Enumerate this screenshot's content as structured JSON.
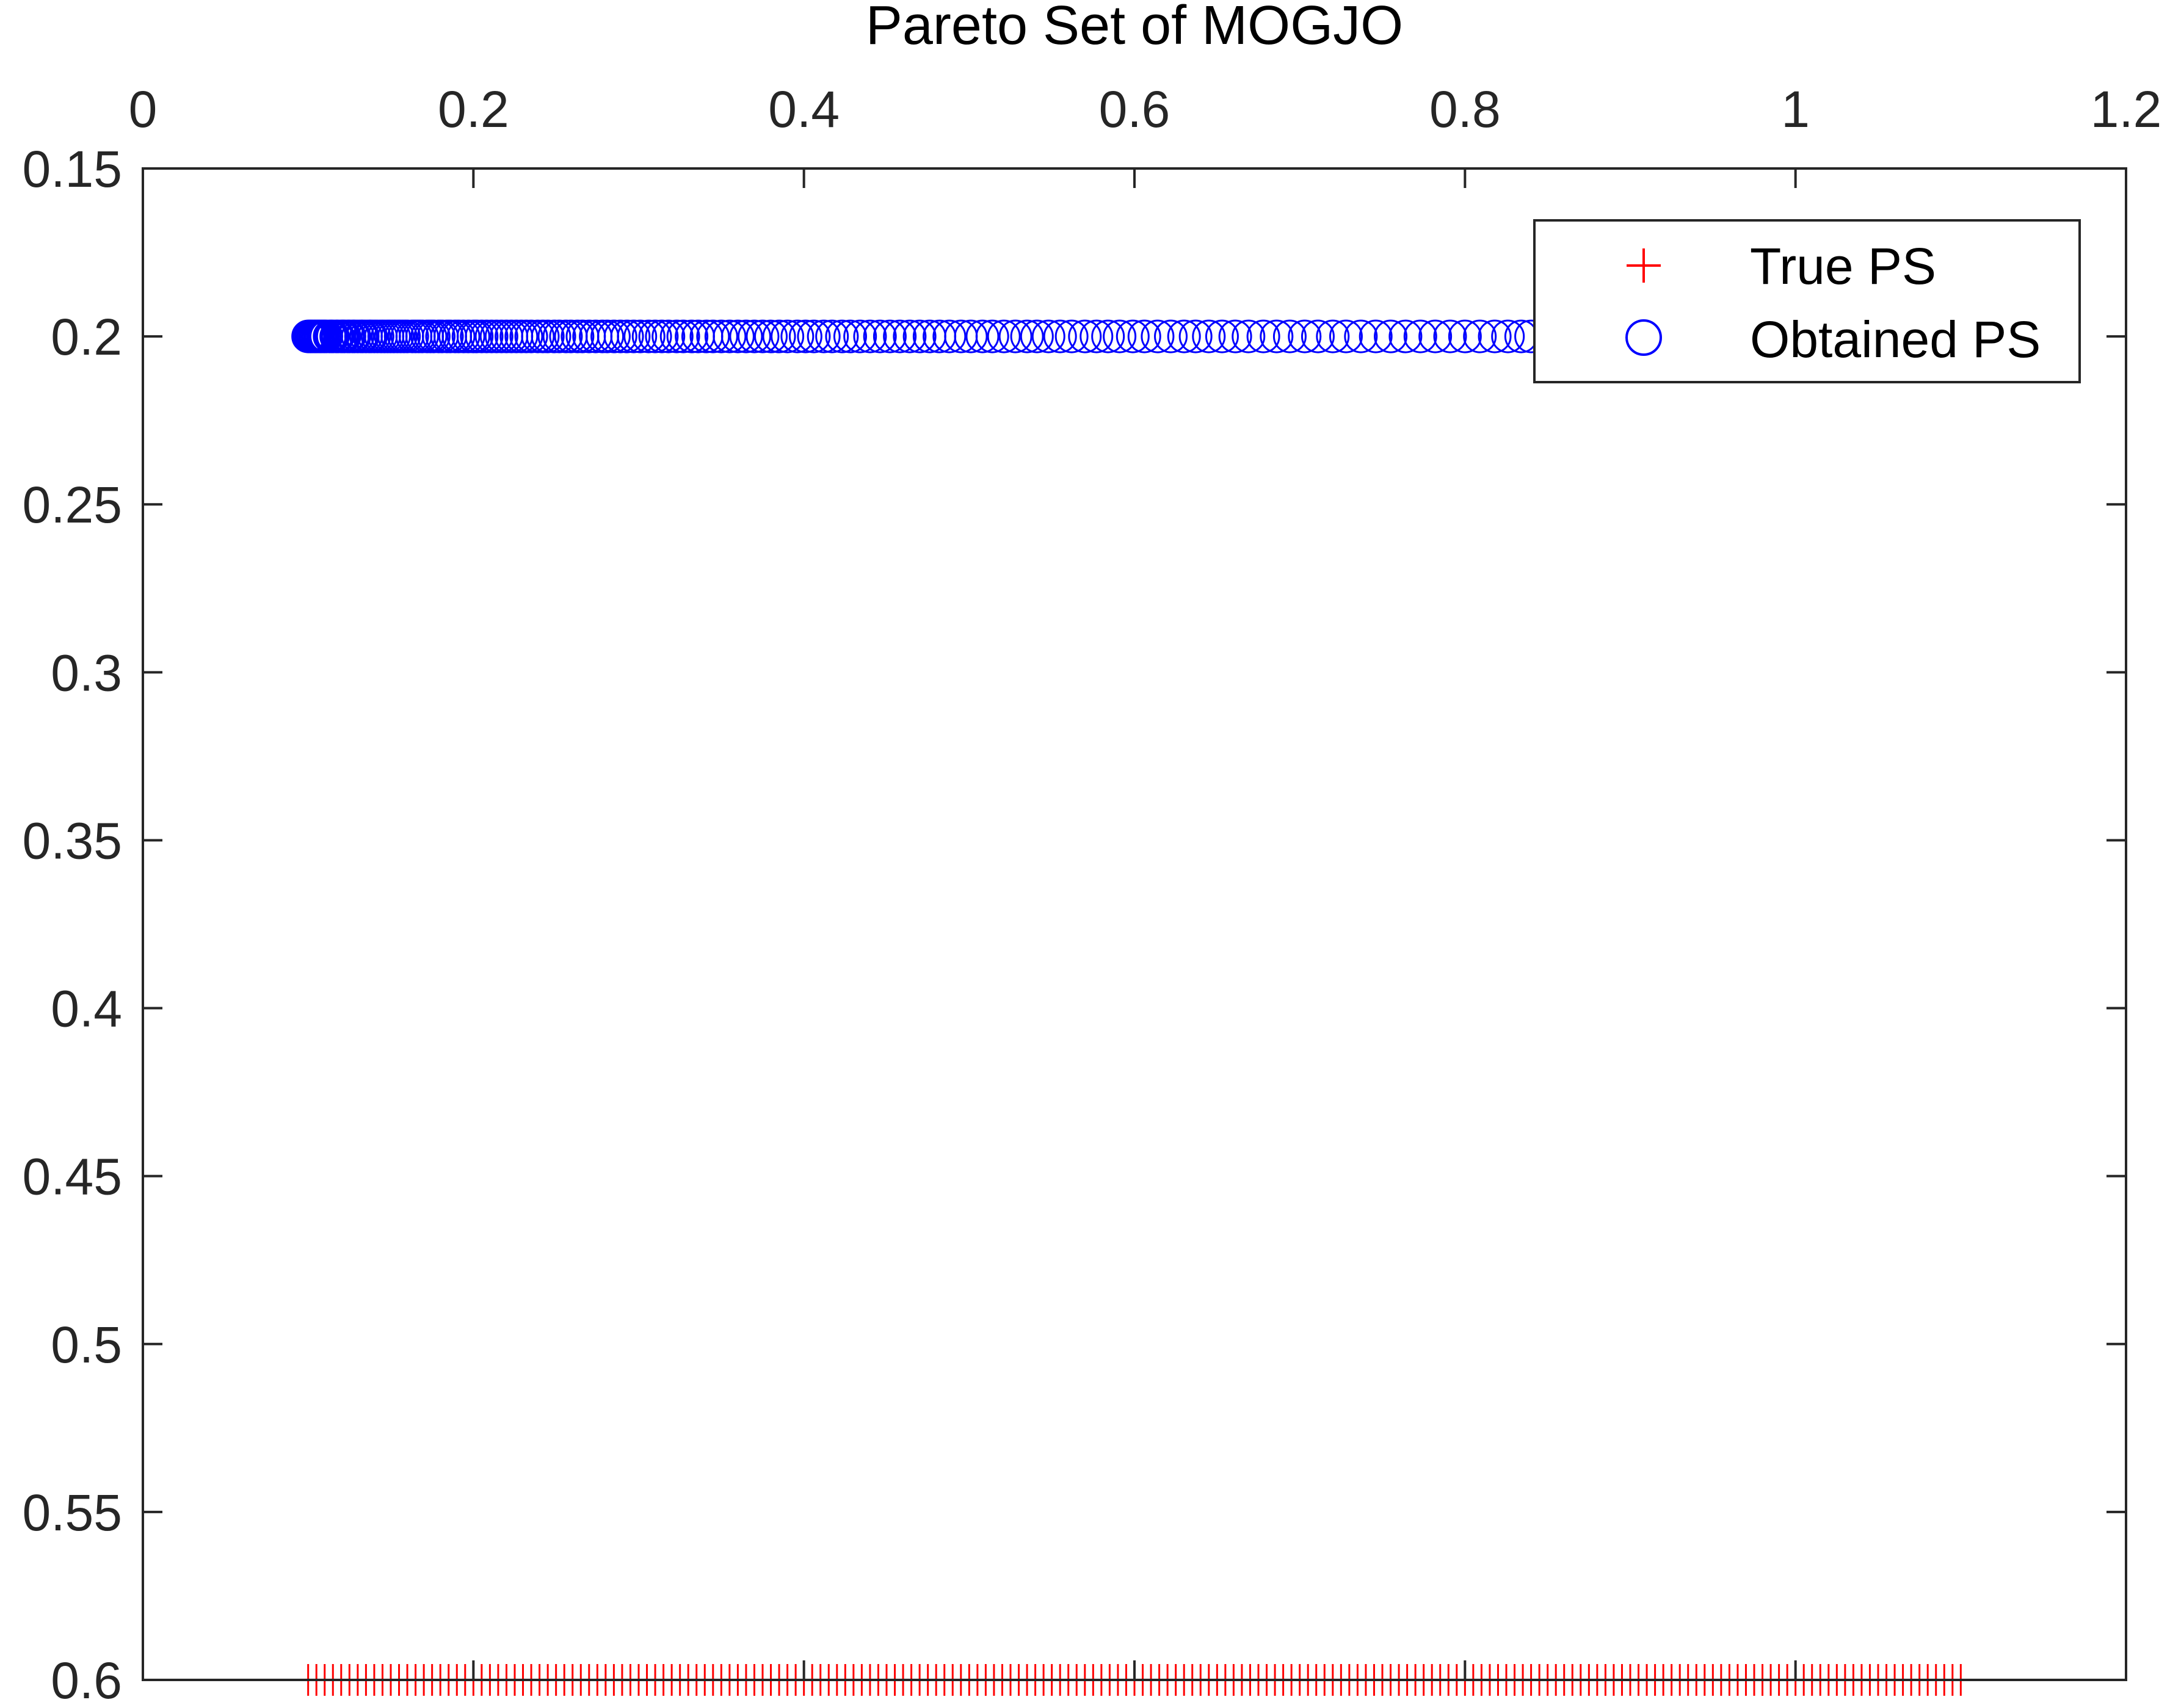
{
  "chart_data": {
    "type": "scatter",
    "title": "Pareto Set of MOGJO",
    "xlabel": "",
    "ylabel": "",
    "x_axis_location": "top",
    "y_axis_direction": "reversed",
    "xlim": [
      0,
      1.2
    ],
    "ylim": [
      0.15,
      0.6
    ],
    "xticks": [
      0,
      0.2,
      0.4,
      0.6,
      0.8,
      1,
      1.2
    ],
    "xtick_labels": [
      "0",
      "0.2",
      "0.4",
      "0.6",
      "0.8",
      "1",
      "1.2"
    ],
    "yticks": [
      0.15,
      0.2,
      0.25,
      0.3,
      0.35,
      0.4,
      0.45,
      0.5,
      0.55,
      0.6
    ],
    "ytick_labels": [
      "0.15",
      "0.2",
      "0.25",
      "0.3",
      "0.35",
      "0.4",
      "0.45",
      "0.5",
      "0.55",
      "0.6"
    ],
    "grid": false,
    "legend_position": "top-right",
    "series": [
      {
        "name": "True PS",
        "marker": "plus",
        "color": "#ff0000",
        "y_constant": 0.6,
        "x": [
          0.1,
          0.105,
          0.11,
          0.115,
          0.12,
          0.125,
          0.13,
          0.135,
          0.14,
          0.145,
          0.15,
          0.155,
          0.16,
          0.165,
          0.17,
          0.175,
          0.18,
          0.185,
          0.19,
          0.195,
          0.2,
          0.205,
          0.21,
          0.215,
          0.22,
          0.225,
          0.23,
          0.235,
          0.24,
          0.245,
          0.25,
          0.255,
          0.26,
          0.265,
          0.27,
          0.275,
          0.28,
          0.285,
          0.29,
          0.295,
          0.3,
          0.305,
          0.31,
          0.315,
          0.32,
          0.325,
          0.33,
          0.335,
          0.34,
          0.345,
          0.35,
          0.355,
          0.36,
          0.365,
          0.37,
          0.375,
          0.38,
          0.385,
          0.39,
          0.395,
          0.4,
          0.405,
          0.41,
          0.415,
          0.42,
          0.425,
          0.43,
          0.435,
          0.44,
          0.445,
          0.45,
          0.455,
          0.46,
          0.465,
          0.47,
          0.475,
          0.48,
          0.485,
          0.49,
          0.495,
          0.5,
          0.505,
          0.51,
          0.515,
          0.52,
          0.525,
          0.53,
          0.535,
          0.54,
          0.545,
          0.55,
          0.555,
          0.56,
          0.565,
          0.57,
          0.575,
          0.58,
          0.585,
          0.59,
          0.595,
          0.6,
          0.605,
          0.61,
          0.615,
          0.62,
          0.625,
          0.63,
          0.635,
          0.64,
          0.645,
          0.65,
          0.655,
          0.66,
          0.665,
          0.67,
          0.675,
          0.68,
          0.685,
          0.69,
          0.695,
          0.7,
          0.705,
          0.71,
          0.715,
          0.72,
          0.725,
          0.73,
          0.735,
          0.74,
          0.745,
          0.75,
          0.755,
          0.76,
          0.765,
          0.77,
          0.775,
          0.78,
          0.785,
          0.79,
          0.795,
          0.8,
          0.805,
          0.81,
          0.815,
          0.82,
          0.825,
          0.83,
          0.835,
          0.84,
          0.845,
          0.85,
          0.855,
          0.86,
          0.865,
          0.87,
          0.875,
          0.88,
          0.885,
          0.89,
          0.895,
          0.9,
          0.905,
          0.91,
          0.915,
          0.92,
          0.925,
          0.93,
          0.935,
          0.94,
          0.945,
          0.95,
          0.955,
          0.96,
          0.965,
          0.97,
          0.975,
          0.98,
          0.985,
          0.99,
          0.995,
          1.0,
          1.005,
          1.01,
          1.015,
          1.02,
          1.025,
          1.03,
          1.035,
          1.04,
          1.045,
          1.05,
          1.055,
          1.06,
          1.065,
          1.07,
          1.075,
          1.08,
          1.085,
          1.09,
          1.095,
          1.1
        ]
      },
      {
        "name": "Obtained PS",
        "marker": "circle",
        "color": "#0000ff",
        "y_constant": 0.2,
        "x": [
          0.1,
          0.101,
          0.102,
          0.103,
          0.104,
          0.105,
          0.106,
          0.107,
          0.108,
          0.109,
          0.11,
          0.111,
          0.113,
          0.114,
          0.115,
          0.117,
          0.118,
          0.12,
          0.121,
          0.122,
          0.124,
          0.125,
          0.127,
          0.128,
          0.13,
          0.132,
          0.133,
          0.135,
          0.137,
          0.138,
          0.14,
          0.142,
          0.144,
          0.146,
          0.148,
          0.15,
          0.152,
          0.154,
          0.156,
          0.158,
          0.16,
          0.163,
          0.165,
          0.167,
          0.169,
          0.172,
          0.174,
          0.176,
          0.179,
          0.181,
          0.184,
          0.186,
          0.189,
          0.191,
          0.194,
          0.197,
          0.2,
          0.202,
          0.205,
          0.208,
          0.211,
          0.214,
          0.217,
          0.22,
          0.223,
          0.226,
          0.229,
          0.232,
          0.235,
          0.239,
          0.242,
          0.245,
          0.249,
          0.252,
          0.256,
          0.259,
          0.263,
          0.266,
          0.27,
          0.274,
          0.278,
          0.281,
          0.285,
          0.289,
          0.293,
          0.297,
          0.301,
          0.306,
          0.31,
          0.314,
          0.318,
          0.323,
          0.327,
          0.332,
          0.336,
          0.341,
          0.345,
          0.35,
          0.355,
          0.36,
          0.365,
          0.37,
          0.375,
          0.38,
          0.385,
          0.39,
          0.396,
          0.401,
          0.406,
          0.412,
          0.417,
          0.423,
          0.428,
          0.434,
          0.44,
          0.446,
          0.452,
          0.458,
          0.464,
          0.47,
          0.476,
          0.482,
          0.488,
          0.495,
          0.501,
          0.508,
          0.514,
          0.521,
          0.528,
          0.535,
          0.541,
          0.548,
          0.555,
          0.562,
          0.57,
          0.577,
          0.584,
          0.591,
          0.599,
          0.606,
          0.614,
          0.622,
          0.63,
          0.637,
          0.645,
          0.653,
          0.661,
          0.669,
          0.678,
          0.686,
          0.694,
          0.703,
          0.711,
          0.72,
          0.728,
          0.737,
          0.746,
          0.755,
          0.764,
          0.773,
          0.782,
          0.791,
          0.8,
          0.809,
          0.818,
          0.826,
          0.834,
          0.84
        ]
      }
    ]
  }
}
